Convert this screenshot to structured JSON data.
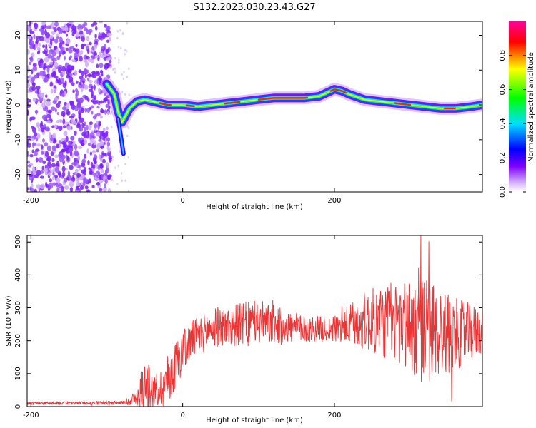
{
  "title": "S132.2023.030.23.43.G27",
  "chart_data": [
    {
      "type": "heatmap",
      "xlabel": "Height of straight line (km)",
      "ylabel": "Frequency (Hz)",
      "xlim": [
        -205,
        395
      ],
      "ylim": [
        -25,
        24
      ],
      "xticks": [
        -200,
        0,
        200
      ],
      "yticks": [
        20,
        10,
        0,
        -10,
        -20
      ],
      "colorbar": {
        "label": "Normalized spectral amplitude",
        "range": [
          0.0,
          1.0
        ],
        "ticks": [
          "0.0",
          "0.2",
          "0.4",
          "0.6",
          "0.8"
        ],
        "colors": [
          "#ffffff",
          "#7d00ff",
          "#0000ff",
          "#00e0ff",
          "#00ff00",
          "#ffff00",
          "#ff0000",
          "#ff0099"
        ]
      },
      "ridge": {
        "x": [
          -100,
          -90,
          -85,
          -80,
          -75,
          -70,
          -60,
          -50,
          -40,
          -30,
          -20,
          0,
          20,
          40,
          60,
          80,
          100,
          120,
          140,
          160,
          180,
          190,
          200,
          210,
          220,
          240,
          260,
          280,
          300,
          320,
          340,
          360,
          380,
          395
        ],
        "y": [
          6,
          3,
          -2,
          -5,
          -3,
          -1,
          1,
          1.5,
          1,
          0.5,
          0,
          0,
          -0.5,
          0,
          0.5,
          1,
          1.5,
          2,
          2,
          2,
          2.5,
          3.5,
          4.5,
          4,
          3,
          1.5,
          1,
          0.5,
          0,
          -0.5,
          -1,
          -1,
          -0.5,
          0
        ]
      },
      "noise_region_x": [
        -205,
        -95
      ]
    },
    {
      "type": "line",
      "xlabel": "Height of straight line (km)",
      "ylabel": "SNR (10 * v/v)",
      "xlim": [
        -205,
        395
      ],
      "ylim": [
        0,
        520
      ],
      "xticks": [
        -200,
        0,
        200
      ],
      "yticks": [
        0,
        100,
        200,
        300,
        400,
        500
      ],
      "color": "#ee3333",
      "series": [
        {
          "envelope": [
            {
              "x": -205,
              "mean": 10,
              "amp": 4
            },
            {
              "x": -80,
              "mean": 12,
              "amp": 5
            },
            {
              "x": -60,
              "mean": 25,
              "amp": 25
            },
            {
              "x": -50,
              "mean": 70,
              "amp": 80
            },
            {
              "x": -35,
              "mean": 40,
              "amp": 45
            },
            {
              "x": -20,
              "mean": 80,
              "amp": 80
            },
            {
              "x": -5,
              "mean": 150,
              "amp": 70
            },
            {
              "x": 10,
              "mean": 200,
              "amp": 60
            },
            {
              "x": 40,
              "mean": 240,
              "amp": 60
            },
            {
              "x": 100,
              "mean": 255,
              "amp": 70
            },
            {
              "x": 160,
              "mean": 235,
              "amp": 40
            },
            {
              "x": 200,
              "mean": 235,
              "amp": 40
            },
            {
              "x": 240,
              "mean": 260,
              "amp": 90
            },
            {
              "x": 280,
              "mean": 260,
              "amp": 130
            },
            {
              "x": 320,
              "mean": 230,
              "amp": 170
            },
            {
              "x": 360,
              "mean": 220,
              "amp": 110
            },
            {
              "x": 395,
              "mean": 230,
              "amp": 70
            }
          ],
          "n_samples": 1200
        }
      ]
    }
  ]
}
